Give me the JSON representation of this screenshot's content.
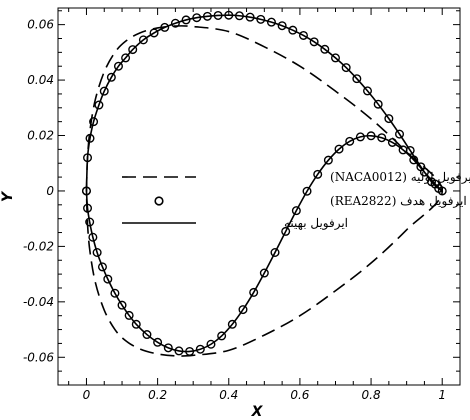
{
  "chart_data": {
    "type": "line",
    "xlabel": "X",
    "ylabel": "Y",
    "xlim": [
      -0.08,
      1.05
    ],
    "ylim": [
      -0.07,
      0.066
    ],
    "x_ticks": [
      0,
      0.2,
      0.4,
      0.6,
      0.8,
      1
    ],
    "x_tick_labels": [
      "0",
      "0.2",
      "0.4",
      "0.6",
      "0.8",
      "1"
    ],
    "y_ticks": [
      -0.06,
      -0.04,
      -0.02,
      0,
      0.02,
      0.04,
      0.06
    ],
    "y_tick_labels": [
      "-0.06",
      "-0.04",
      "-0.02",
      "0",
      "0.02",
      "0.04",
      "0.06"
    ],
    "grid": false,
    "legend_position": "center-left",
    "series": [
      {
        "name": "ایرفویل اولیه (NACA0012)",
        "style": "dashed",
        "color": "#000000",
        "x": [
          0.0,
          0.003,
          0.01,
          0.025,
          0.05,
          0.08,
          0.11,
          0.15,
          0.2,
          0.25,
          0.3,
          0.4,
          0.5,
          0.6,
          0.7,
          0.8,
          0.9,
          1.0,
          0.9,
          0.8,
          0.7,
          0.6,
          0.5,
          0.4,
          0.3,
          0.25,
          0.2,
          0.15,
          0.11,
          0.08,
          0.05,
          0.025,
          0.01,
          0.003,
          0.0
        ],
        "y": [
          0.0,
          0.012,
          0.022,
          0.033,
          0.043,
          0.05,
          0.054,
          0.057,
          0.0588,
          0.0595,
          0.0593,
          0.0575,
          0.052,
          0.045,
          0.036,
          0.026,
          0.014,
          0.0,
          -0.014,
          -0.026,
          -0.036,
          -0.045,
          -0.052,
          -0.0575,
          -0.0593,
          -0.0595,
          -0.0588,
          -0.057,
          -0.054,
          -0.05,
          -0.043,
          -0.033,
          -0.022,
          -0.012,
          0.0
        ]
      },
      {
        "name": "ایرفویل هدف (REA2822)",
        "style": "circles",
        "color": "#000000",
        "x": [
          0.0,
          0.003,
          0.01,
          0.02,
          0.035,
          0.05,
          0.07,
          0.09,
          0.11,
          0.13,
          0.16,
          0.19,
          0.22,
          0.25,
          0.28,
          0.31,
          0.34,
          0.37,
          0.4,
          0.43,
          0.46,
          0.49,
          0.52,
          0.55,
          0.58,
          0.61,
          0.64,
          0.67,
          0.7,
          0.73,
          0.76,
          0.79,
          0.82,
          0.85,
          0.88,
          0.91,
          0.94,
          0.97,
          0.99,
          1.0,
          0.98,
          0.95,
          0.92,
          0.89,
          0.86,
          0.83,
          0.8,
          0.77,
          0.74,
          0.71,
          0.68,
          0.65,
          0.62,
          0.59,
          0.56,
          0.53,
          0.5,
          0.47,
          0.44,
          0.41,
          0.38,
          0.35,
          0.32,
          0.29,
          0.26,
          0.23,
          0.2,
          0.17,
          0.14,
          0.12,
          0.1,
          0.08,
          0.06,
          0.045,
          0.03,
          0.018,
          0.009,
          0.003,
          0.0
        ],
        "y": [
          0.0,
          0.012,
          0.019,
          0.025,
          0.031,
          0.036,
          0.041,
          0.045,
          0.048,
          0.051,
          0.0545,
          0.057,
          0.059,
          0.0605,
          0.0617,
          0.0625,
          0.063,
          0.0633,
          0.0634,
          0.0632,
          0.0627,
          0.0619,
          0.0609,
          0.0596,
          0.058,
          0.0561,
          0.0538,
          0.0511,
          0.048,
          0.0445,
          0.0405,
          0.0361,
          0.0313,
          0.0261,
          0.0205,
          0.0146,
          0.0087,
          0.0033,
          0.0009,
          0.0,
          0.0025,
          0.0068,
          0.0112,
          0.0148,
          0.0175,
          0.0192,
          0.0199,
          0.0195,
          0.0179,
          0.0151,
          0.0111,
          0.006,
          -0.0001,
          -0.0071,
          -0.0146,
          -0.0222,
          -0.0296,
          -0.0366,
          -0.0428,
          -0.0481,
          -0.0523,
          -0.0553,
          -0.0571,
          -0.0579,
          -0.0577,
          -0.0566,
          -0.0546,
          -0.0518,
          -0.0481,
          -0.0449,
          -0.0412,
          -0.0369,
          -0.0318,
          -0.0274,
          -0.0222,
          -0.0167,
          -0.0112,
          -0.0062,
          0.0
        ]
      },
      {
        "name": "ایرفویل بهینه",
        "style": "solid",
        "color": "#000000",
        "x": [
          0.0,
          0.003,
          0.01,
          0.02,
          0.035,
          0.05,
          0.07,
          0.09,
          0.11,
          0.13,
          0.16,
          0.19,
          0.22,
          0.25,
          0.28,
          0.31,
          0.34,
          0.37,
          0.4,
          0.43,
          0.46,
          0.49,
          0.52,
          0.55,
          0.58,
          0.61,
          0.64,
          0.67,
          0.7,
          0.73,
          0.76,
          0.79,
          0.82,
          0.85,
          0.88,
          0.91,
          0.94,
          0.97,
          0.99,
          1.0,
          0.98,
          0.95,
          0.92,
          0.89,
          0.86,
          0.83,
          0.8,
          0.77,
          0.74,
          0.71,
          0.68,
          0.65,
          0.62,
          0.59,
          0.56,
          0.53,
          0.5,
          0.47,
          0.44,
          0.41,
          0.38,
          0.35,
          0.32,
          0.29,
          0.26,
          0.23,
          0.2,
          0.17,
          0.14,
          0.12,
          0.1,
          0.08,
          0.06,
          0.045,
          0.03,
          0.018,
          0.009,
          0.003,
          0.0
        ],
        "y": [
          0.0,
          0.012,
          0.019,
          0.025,
          0.031,
          0.036,
          0.041,
          0.045,
          0.048,
          0.051,
          0.0545,
          0.057,
          0.059,
          0.0605,
          0.0617,
          0.0625,
          0.063,
          0.0633,
          0.0634,
          0.0632,
          0.0627,
          0.0619,
          0.0609,
          0.0596,
          0.058,
          0.0561,
          0.0538,
          0.0511,
          0.048,
          0.0445,
          0.0405,
          0.0361,
          0.0313,
          0.0261,
          0.0205,
          0.0146,
          0.0087,
          0.0033,
          0.0009,
          0.0,
          0.0025,
          0.0068,
          0.0112,
          0.0148,
          0.0175,
          0.0192,
          0.0199,
          0.0195,
          0.0179,
          0.0151,
          0.0111,
          0.006,
          -0.0001,
          -0.0071,
          -0.0146,
          -0.0222,
          -0.0296,
          -0.0366,
          -0.0428,
          -0.0481,
          -0.0523,
          -0.0553,
          -0.0571,
          -0.0579,
          -0.0577,
          -0.0566,
          -0.0546,
          -0.0518,
          -0.0481,
          -0.0449,
          -0.0412,
          -0.0369,
          -0.0318,
          -0.0274,
          -0.0222,
          -0.0167,
          -0.0112,
          -0.0062,
          0.0
        ]
      }
    ]
  }
}
